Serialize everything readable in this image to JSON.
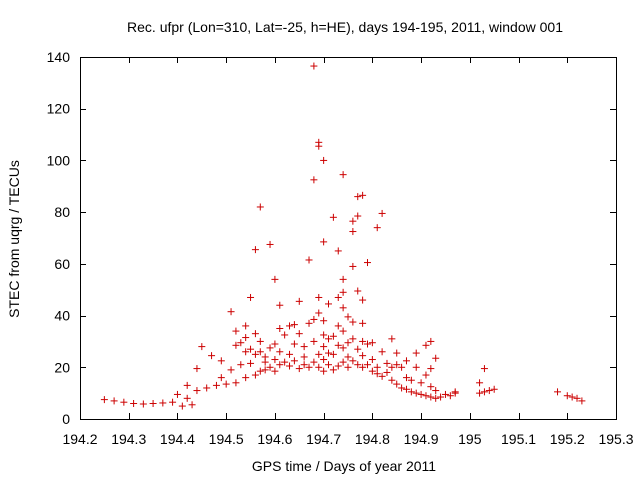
{
  "chart_data": {
    "type": "scatter",
    "title": "Rec. ufpr (Lon=310, Lat=-25, h=HE), days 194-195, 2011, window 001",
    "xlabel": "GPS time / Days of year 2011",
    "ylabel": "STEC from uqrg / TECUs",
    "xlim": [
      194.2,
      195.3
    ],
    "ylim": [
      0,
      140
    ],
    "xticks": [
      194.2,
      194.3,
      194.4,
      194.5,
      194.6,
      194.7,
      194.8,
      194.9,
      195,
      195.1,
      195.2,
      195.3
    ],
    "xtick_labels": [
      "194.2",
      "194.3",
      "194.4",
      "194.5",
      "194.6",
      "194.7",
      "194.8",
      "194.9",
      "195",
      "195.1",
      "195.2",
      "195.3"
    ],
    "yticks": [
      0,
      20,
      40,
      60,
      80,
      100,
      120,
      140
    ],
    "ytick_labels": [
      "0",
      "20",
      "40",
      "60",
      "80",
      "100",
      "120",
      "140"
    ],
    "grid": false,
    "marker": "+",
    "color": "#cc0000",
    "series": [
      {
        "name": "STEC",
        "points": [
          [
            194.25,
            7.5
          ],
          [
            194.27,
            7.0
          ],
          [
            194.29,
            6.5
          ],
          [
            194.31,
            6.0
          ],
          [
            194.33,
            5.8
          ],
          [
            194.35,
            6.0
          ],
          [
            194.37,
            6.2
          ],
          [
            194.39,
            6.5
          ],
          [
            194.4,
            9.5
          ],
          [
            194.41,
            5.0
          ],
          [
            194.42,
            8.0
          ],
          [
            194.42,
            13.0
          ],
          [
            194.43,
            5.5
          ],
          [
            194.44,
            11.0
          ],
          [
            194.44,
            19.5
          ],
          [
            194.45,
            28.0
          ],
          [
            194.46,
            12.0
          ],
          [
            194.47,
            24.5
          ],
          [
            194.48,
            13.0
          ],
          [
            194.49,
            22.5
          ],
          [
            194.49,
            16.0
          ],
          [
            194.5,
            13.5
          ],
          [
            194.51,
            19.0
          ],
          [
            194.51,
            41.5
          ],
          [
            194.52,
            14.0
          ],
          [
            194.52,
            28.5
          ],
          [
            194.52,
            34.0
          ],
          [
            194.53,
            21.0
          ],
          [
            194.53,
            29.5
          ],
          [
            194.54,
            16.0
          ],
          [
            194.54,
            26.0
          ],
          [
            194.54,
            36.0
          ],
          [
            194.54,
            31.5
          ],
          [
            194.55,
            47.0
          ],
          [
            194.55,
            21.5
          ],
          [
            194.55,
            27.0
          ],
          [
            194.56,
            17.0
          ],
          [
            194.56,
            25.0
          ],
          [
            194.56,
            33.0
          ],
          [
            194.56,
            65.5
          ],
          [
            194.57,
            18.5
          ],
          [
            194.57,
            26.0
          ],
          [
            194.57,
            30.0
          ],
          [
            194.57,
            82.0
          ],
          [
            194.58,
            19.0
          ],
          [
            194.58,
            22.0
          ],
          [
            194.58,
            24.0
          ],
          [
            194.59,
            67.5
          ],
          [
            194.59,
            27.5
          ],
          [
            194.59,
            20.0
          ],
          [
            194.6,
            54.0
          ],
          [
            194.6,
            29.0
          ],
          [
            194.6,
            18.5
          ],
          [
            194.6,
            23.0
          ],
          [
            194.61,
            21.0
          ],
          [
            194.61,
            26.0
          ],
          [
            194.61,
            35.0
          ],
          [
            194.61,
            44.0
          ],
          [
            194.62,
            22.0
          ],
          [
            194.62,
            32.5
          ],
          [
            194.63,
            20.5
          ],
          [
            194.63,
            25.0
          ],
          [
            194.63,
            36.0
          ],
          [
            194.64,
            22.5
          ],
          [
            194.64,
            29.0
          ],
          [
            194.64,
            36.5
          ],
          [
            194.65,
            19.5
          ],
          [
            194.65,
            33.0
          ],
          [
            194.65,
            45.5
          ],
          [
            194.66,
            21.0
          ],
          [
            194.66,
            24.0
          ],
          [
            194.66,
            28.0
          ],
          [
            194.67,
            20.0
          ],
          [
            194.67,
            37.0
          ],
          [
            194.67,
            61.5
          ],
          [
            194.68,
            22.0
          ],
          [
            194.68,
            30.0
          ],
          [
            194.68,
            38.5
          ],
          [
            194.68,
            92.5
          ],
          [
            194.68,
            136.5
          ],
          [
            194.69,
            20.0
          ],
          [
            194.69,
            25.0
          ],
          [
            194.69,
            41.0
          ],
          [
            194.69,
            47.0
          ],
          [
            194.69,
            105.5
          ],
          [
            194.69,
            107.0
          ],
          [
            194.7,
            18.5
          ],
          [
            194.7,
            23.0
          ],
          [
            194.7,
            28.0
          ],
          [
            194.7,
            32.5
          ],
          [
            194.7,
            38.0
          ],
          [
            194.7,
            68.5
          ],
          [
            194.7,
            100.0
          ],
          [
            194.71,
            21.0
          ],
          [
            194.71,
            25.5
          ],
          [
            194.71,
            44.5
          ],
          [
            194.71,
            31.0
          ],
          [
            194.72,
            19.0
          ],
          [
            194.72,
            25.0
          ],
          [
            194.72,
            32.0
          ],
          [
            194.72,
            78.0
          ],
          [
            194.73,
            20.5
          ],
          [
            194.73,
            28.5
          ],
          [
            194.73,
            36.0
          ],
          [
            194.73,
            47.0
          ],
          [
            194.73,
            65.0
          ],
          [
            194.74,
            22.0
          ],
          [
            194.74,
            27.5
          ],
          [
            194.74,
            34.0
          ],
          [
            194.74,
            43.0
          ],
          [
            194.74,
            94.5
          ],
          [
            194.74,
            54.0
          ],
          [
            194.74,
            49.0
          ],
          [
            194.75,
            20.0
          ],
          [
            194.75,
            24.0
          ],
          [
            194.75,
            29.5
          ],
          [
            194.75,
            39.5
          ],
          [
            194.76,
            22.5
          ],
          [
            194.76,
            31.0
          ],
          [
            194.76,
            37.5
          ],
          [
            194.76,
            72.5
          ],
          [
            194.76,
            76.5
          ],
          [
            194.76,
            59.0
          ],
          [
            194.77,
            21.0
          ],
          [
            194.77,
            27.0
          ],
          [
            194.77,
            49.5
          ],
          [
            194.77,
            78.5
          ],
          [
            194.77,
            86.0
          ],
          [
            194.78,
            20.0
          ],
          [
            194.78,
            24.5
          ],
          [
            194.78,
            30.0
          ],
          [
            194.78,
            37.0
          ],
          [
            194.78,
            46.0
          ],
          [
            194.78,
            86.5
          ],
          [
            194.79,
            21.0
          ],
          [
            194.79,
            29.0
          ],
          [
            194.79,
            60.5
          ],
          [
            194.8,
            18.5
          ],
          [
            194.8,
            23.0
          ],
          [
            194.8,
            29.5
          ],
          [
            194.81,
            17.5
          ],
          [
            194.81,
            20.0
          ],
          [
            194.81,
            74.0
          ],
          [
            194.82,
            16.5
          ],
          [
            194.82,
            26.0
          ],
          [
            194.82,
            79.5
          ],
          [
            194.83,
            18.0
          ],
          [
            194.83,
            21.5
          ],
          [
            194.84,
            15.0
          ],
          [
            194.84,
            20.0
          ],
          [
            194.84,
            31.0
          ],
          [
            194.85,
            13.5
          ],
          [
            194.85,
            21.0
          ],
          [
            194.85,
            25.5
          ],
          [
            194.86,
            12.0
          ],
          [
            194.86,
            20.0
          ],
          [
            194.87,
            11.5
          ],
          [
            194.87,
            16.0
          ],
          [
            194.87,
            22.5
          ],
          [
            194.88,
            10.5
          ],
          [
            194.88,
            15.0
          ],
          [
            194.89,
            10.0
          ],
          [
            194.89,
            20.0
          ],
          [
            194.89,
            25.5
          ],
          [
            194.9,
            9.5
          ],
          [
            194.9,
            14.0
          ],
          [
            194.91,
            9.0
          ],
          [
            194.91,
            17.0
          ],
          [
            194.91,
            28.5
          ],
          [
            194.92,
            8.5
          ],
          [
            194.92,
            12.5
          ],
          [
            194.92,
            19.5
          ],
          [
            194.92,
            30.0
          ],
          [
            194.93,
            8.0
          ],
          [
            194.93,
            11.0
          ],
          [
            194.93,
            23.5
          ],
          [
            194.94,
            8.5
          ],
          [
            194.95,
            9.5
          ],
          [
            194.96,
            9.0
          ],
          [
            194.97,
            10.0
          ],
          [
            194.97,
            10.5
          ],
          [
            195.02,
            10.0
          ],
          [
            195.02,
            14.0
          ],
          [
            195.03,
            10.5
          ],
          [
            195.03,
            19.5
          ],
          [
            195.04,
            11.0
          ],
          [
            195.05,
            11.5
          ],
          [
            195.18,
            10.5
          ],
          [
            195.2,
            9.0
          ],
          [
            195.21,
            8.5
          ],
          [
            195.22,
            8.0
          ],
          [
            195.23,
            7.0
          ]
        ]
      }
    ]
  }
}
